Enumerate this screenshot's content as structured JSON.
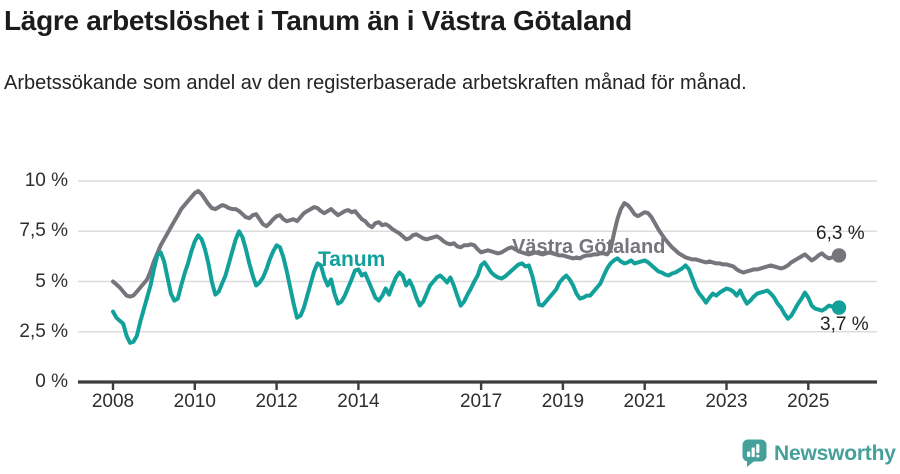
{
  "header": {
    "title": "Lägre arbetslöshet i Tanum än i Västra Götaland",
    "subtitle": "Arbetssökande som andel av den registerbaserade arbetskraften månad för månad."
  },
  "footer": {
    "brand": "Newsworthy"
  },
  "colors": {
    "tanum": "#12a19a",
    "vastra_gotaland": "#76757c",
    "brand_teal": "#46a09a",
    "gridline": "#dcdcdc",
    "axis": "#3d3d3d"
  },
  "chart_data": {
    "type": "line",
    "title": "Lägre arbetslöshet i Tanum än i Västra Götaland",
    "subtitle": "Arbetssökande som andel av den registerbaserade arbetskraften månad för månad.",
    "x_unit": "monthly from 2008-01 to 2025-10",
    "ylim": [
      0,
      10
    ],
    "grid": "horizontal",
    "y_ticks": [
      {
        "label": "10 %",
        "value": 10
      },
      {
        "label": "7,5 %",
        "value": 7.5
      },
      {
        "label": "5 %",
        "value": 5
      },
      {
        "label": "2,5 %",
        "value": 2.5
      },
      {
        "label": "0 %",
        "value": 0
      }
    ],
    "x_ticks": [
      {
        "label": "2008",
        "year": 2008
      },
      {
        "label": "2010",
        "year": 2010
      },
      {
        "label": "2012",
        "year": 2012
      },
      {
        "label": "2014",
        "year": 2014
      },
      {
        "label": "2017",
        "year": 2017
      },
      {
        "label": "2019",
        "year": 2019
      },
      {
        "label": "2021",
        "year": 2021
      },
      {
        "label": "2023",
        "year": 2023
      },
      {
        "label": "2025",
        "year": 2025
      }
    ],
    "series": [
      {
        "name": "Västra Götaland",
        "color": "#76757c",
        "end_label": "6,3 %",
        "end_value": 6.3,
        "values": [
          5.0,
          4.85,
          4.7,
          4.5,
          4.3,
          4.25,
          4.3,
          4.5,
          4.7,
          4.9,
          5.1,
          5.5,
          6.0,
          6.4,
          6.8,
          7.1,
          7.4,
          7.7,
          8.0,
          8.3,
          8.6,
          8.8,
          9.0,
          9.2,
          9.4,
          9.5,
          9.35,
          9.1,
          8.85,
          8.65,
          8.6,
          8.7,
          8.8,
          8.75,
          8.65,
          8.6,
          8.6,
          8.5,
          8.35,
          8.2,
          8.15,
          8.3,
          8.35,
          8.1,
          7.85,
          7.75,
          7.9,
          8.1,
          8.25,
          8.3,
          8.1,
          8.0,
          8.05,
          8.1,
          8.0,
          8.2,
          8.4,
          8.5,
          8.6,
          8.7,
          8.65,
          8.5,
          8.4,
          8.5,
          8.6,
          8.45,
          8.3,
          8.4,
          8.5,
          8.55,
          8.45,
          8.5,
          8.3,
          8.1,
          8.0,
          7.8,
          7.7,
          7.9,
          7.95,
          7.8,
          7.85,
          7.75,
          7.6,
          7.5,
          7.4,
          7.25,
          7.1,
          7.15,
          7.3,
          7.35,
          7.25,
          7.15,
          7.1,
          7.15,
          7.2,
          7.25,
          7.15,
          7.0,
          6.9,
          6.85,
          6.9,
          6.75,
          6.7,
          6.8,
          6.8,
          6.85,
          6.8,
          6.6,
          6.45,
          6.5,
          6.55,
          6.5,
          6.45,
          6.4,
          6.45,
          6.55,
          6.65,
          6.7,
          6.6,
          6.5,
          6.45,
          6.4,
          6.35,
          6.4,
          6.45,
          6.4,
          6.35,
          6.4,
          6.45,
          6.4,
          6.35,
          6.3,
          6.3,
          6.25,
          6.2,
          6.15,
          6.2,
          6.15,
          6.25,
          6.3,
          6.3,
          6.35,
          6.35,
          6.4,
          6.4,
          6.35,
          6.6,
          7.4,
          8.1,
          8.6,
          8.9,
          8.8,
          8.6,
          8.35,
          8.25,
          8.35,
          8.45,
          8.4,
          8.2,
          7.9,
          7.6,
          7.35,
          7.1,
          6.9,
          6.7,
          6.55,
          6.4,
          6.3,
          6.2,
          6.15,
          6.1,
          6.1,
          6.05,
          6.0,
          5.95,
          6.0,
          5.95,
          5.9,
          5.9,
          5.85,
          5.85,
          5.8,
          5.75,
          5.6,
          5.5,
          5.45,
          5.5,
          5.55,
          5.6,
          5.6,
          5.65,
          5.7,
          5.75,
          5.8,
          5.75,
          5.7,
          5.65,
          5.7,
          5.8,
          5.95,
          6.05,
          6.15,
          6.25,
          6.35,
          6.2,
          6.05,
          6.15,
          6.3,
          6.4,
          6.25,
          6.15,
          6.2,
          6.25,
          6.3
        ]
      },
      {
        "name": "Tanum",
        "color": "#12a19a",
        "end_label": "3,7 %",
        "end_value": 3.7,
        "values": [
          3.5,
          3.2,
          3.05,
          2.9,
          2.3,
          1.95,
          2.0,
          2.3,
          3.0,
          3.6,
          4.2,
          4.8,
          5.6,
          6.3,
          6.45,
          6.0,
          5.2,
          4.4,
          4.05,
          4.15,
          4.8,
          5.4,
          5.9,
          6.5,
          7.0,
          7.3,
          7.1,
          6.6,
          5.9,
          5.0,
          4.35,
          4.5,
          4.9,
          5.3,
          5.9,
          6.5,
          7.1,
          7.5,
          7.2,
          6.6,
          5.9,
          5.3,
          4.8,
          4.95,
          5.2,
          5.6,
          6.1,
          6.5,
          6.8,
          6.7,
          6.2,
          5.5,
          4.7,
          3.9,
          3.2,
          3.3,
          3.7,
          4.3,
          4.9,
          5.5,
          5.9,
          5.8,
          5.2,
          4.8,
          5.1,
          4.4,
          3.9,
          4.0,
          4.3,
          4.7,
          5.1,
          5.55,
          5.6,
          5.3,
          5.4,
          5.0,
          4.6,
          4.2,
          4.05,
          4.3,
          4.65,
          4.35,
          4.8,
          5.2,
          5.45,
          5.3,
          4.8,
          5.05,
          4.7,
          4.2,
          3.8,
          4.0,
          4.4,
          4.8,
          5.0,
          5.2,
          5.3,
          5.15,
          4.95,
          5.2,
          4.8,
          4.3,
          3.8,
          4.0,
          4.35,
          4.65,
          5.0,
          5.3,
          5.8,
          5.95,
          5.7,
          5.45,
          5.3,
          5.2,
          5.15,
          5.25,
          5.4,
          5.55,
          5.7,
          5.85,
          5.9,
          5.75,
          5.8,
          5.3,
          4.6,
          3.85,
          3.8,
          4.0,
          4.2,
          4.4,
          4.6,
          4.95,
          5.15,
          5.3,
          5.1,
          4.8,
          4.4,
          4.15,
          4.2,
          4.3,
          4.3,
          4.5,
          4.7,
          4.9,
          5.3,
          5.65,
          5.9,
          6.05,
          6.15,
          6.0,
          5.9,
          5.95,
          6.05,
          5.9,
          5.95,
          6.0,
          6.05,
          5.95,
          5.8,
          5.65,
          5.5,
          5.45,
          5.35,
          5.3,
          5.4,
          5.45,
          5.55,
          5.65,
          5.8,
          5.6,
          5.15,
          4.7,
          4.4,
          4.2,
          3.95,
          4.2,
          4.4,
          4.3,
          4.45,
          4.55,
          4.65,
          4.6,
          4.5,
          4.3,
          4.55,
          4.2,
          3.9,
          4.05,
          4.25,
          4.4,
          4.45,
          4.5,
          4.55,
          4.4,
          4.2,
          3.9,
          3.7,
          3.4,
          3.15,
          3.3,
          3.6,
          3.9,
          4.15,
          4.45,
          4.2,
          3.8,
          3.65,
          3.6,
          3.55,
          3.65,
          3.8,
          3.75,
          3.7,
          3.7
        ]
      }
    ],
    "legend_position": "labels-on-lines"
  }
}
